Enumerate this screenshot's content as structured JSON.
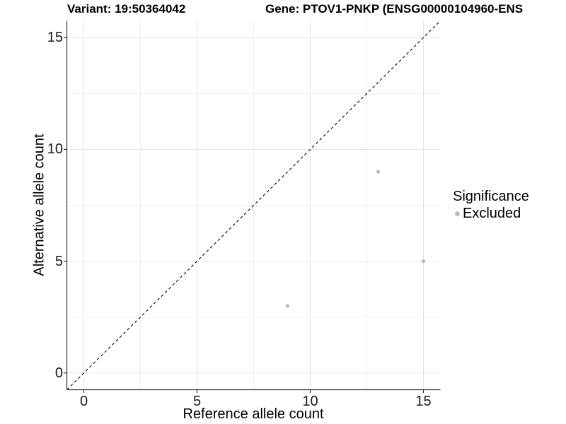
{
  "titles": {
    "variant": "Variant: 19:50364042",
    "gene": "Gene: PTOV1-PNKP (ENSG00000104960-ENS"
  },
  "chart_data": {
    "type": "scatter",
    "title_left": "Variant: 19:50364042",
    "title_right": "Gene: PTOV1-PNKP (ENSG00000104960-ENS",
    "xlabel": "Reference allele count",
    "ylabel": "Alternative allele count",
    "xlim": [
      -0.75,
      15.75
    ],
    "ylim": [
      -0.75,
      15.75
    ],
    "x_ticks": [
      0,
      5,
      10,
      15
    ],
    "y_ticks": [
      0,
      5,
      10,
      15
    ],
    "grid": "major-and-minor",
    "legend_position": "right",
    "legend": {
      "title": "Significance",
      "items": [
        {
          "label": "Excluded",
          "color": "#bcbcbc"
        }
      ]
    },
    "series": [
      {
        "name": "Excluded",
        "color": "#bcbcbc",
        "points": [
          {
            "x": 9,
            "y": 3
          },
          {
            "x": 13,
            "y": 9
          },
          {
            "x": 15,
            "y": 5
          }
        ]
      }
    ],
    "reference_line": {
      "slope": 1,
      "intercept": 0,
      "style": "dashed",
      "color": "#000000"
    }
  },
  "colors": {
    "grid_major": "#e4e4e4",
    "grid_minor": "#efefef",
    "axis_line": "#333333",
    "point": "#bcbcbc"
  }
}
